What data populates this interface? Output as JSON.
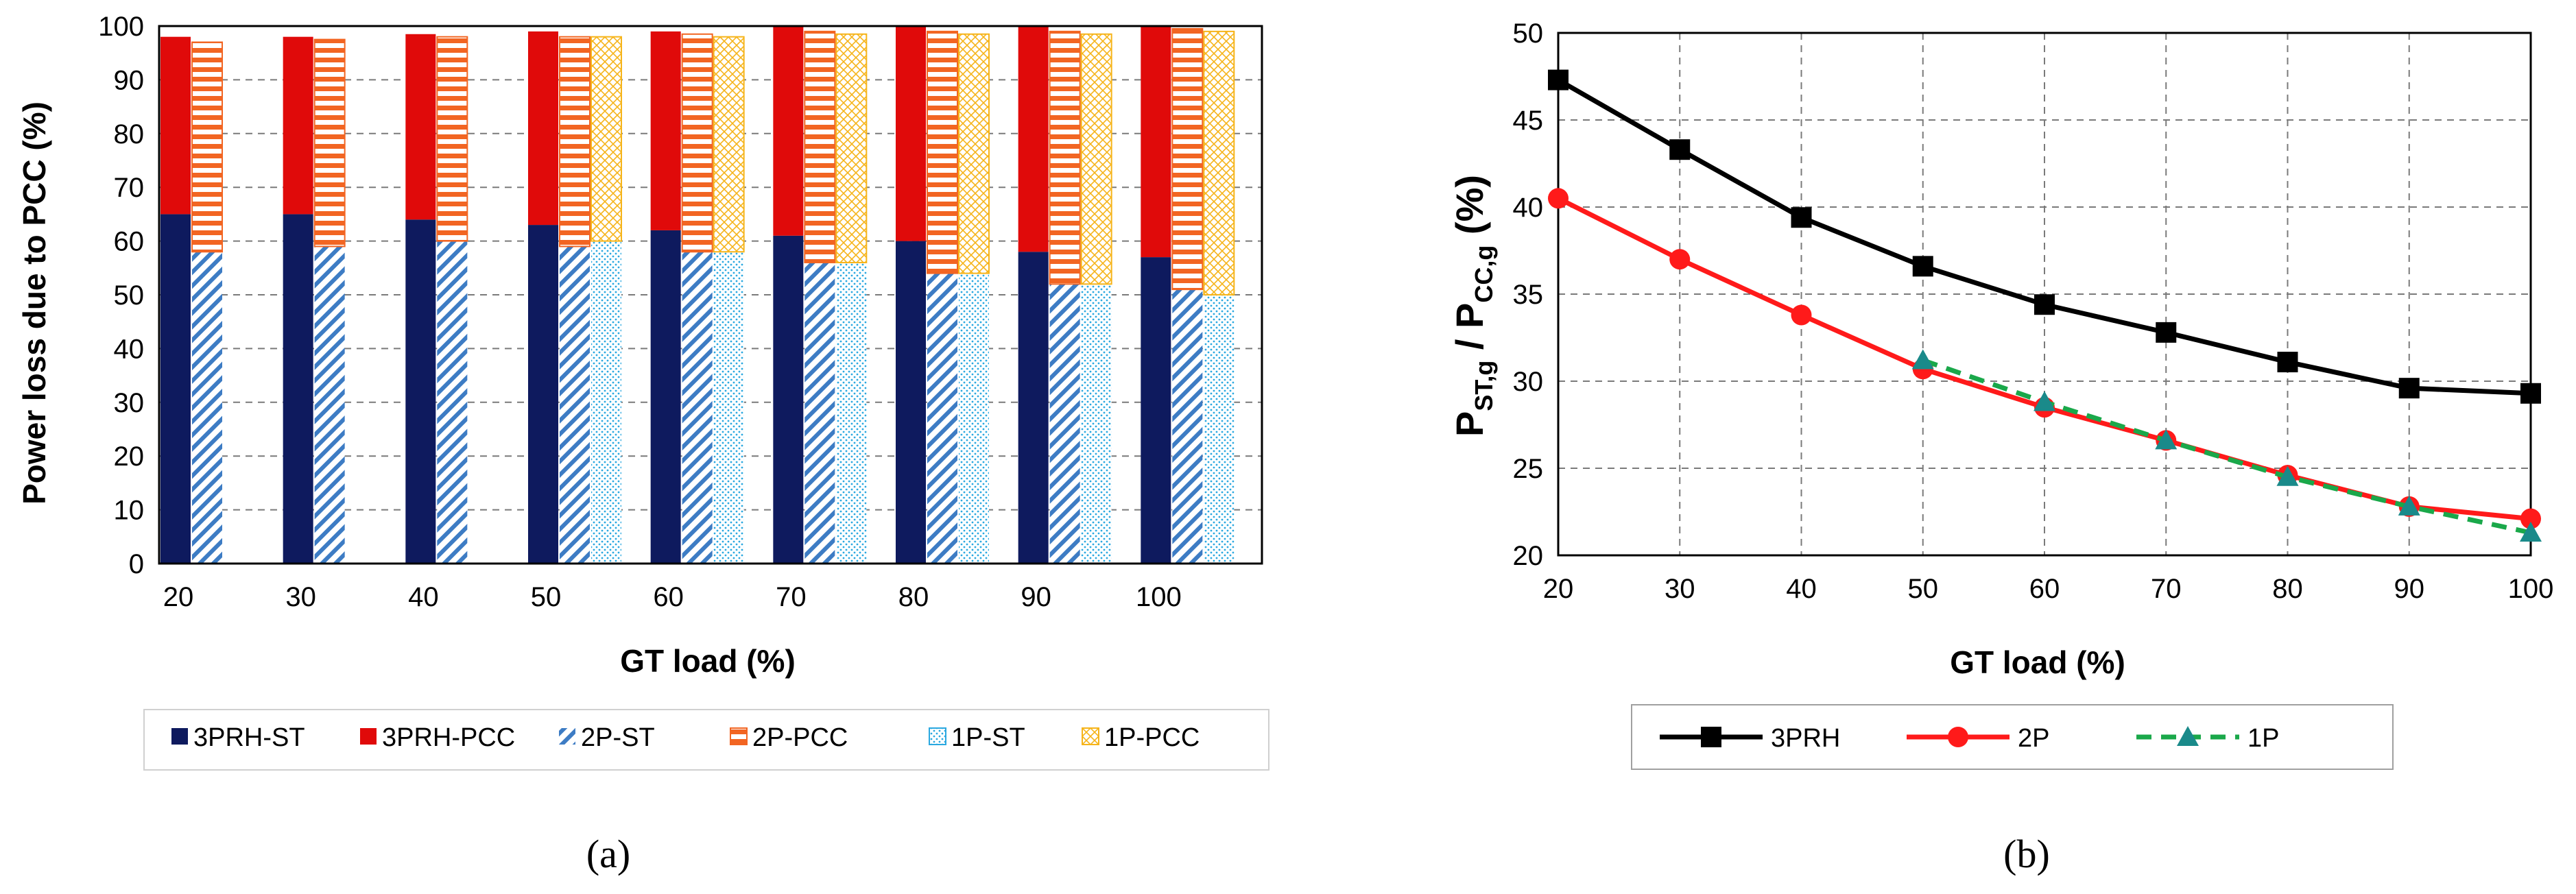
{
  "chart_data": [
    {
      "type": "bar",
      "panel_label": "(a)",
      "xlabel": "GT load (%)",
      "ylabel": "Power loss due to PCC (%)",
      "ylim": [
        0,
        100
      ],
      "ytick_step": 10,
      "yticks": [
        "0",
        "10",
        "20",
        "30",
        "40",
        "50",
        "60",
        "70",
        "80",
        "90",
        "100"
      ],
      "categories": [
        "20",
        "30",
        "40",
        "50",
        "60",
        "70",
        "80",
        "90",
        "100"
      ],
      "grid": true,
      "legend_position": "bottom",
      "stacks": [
        {
          "name": "3PRH",
          "st_values": [
            65,
            65,
            64,
            63,
            62,
            61,
            60,
            58,
            57
          ],
          "totals": [
            98,
            98,
            98.5,
            99,
            99,
            100,
            100,
            100,
            100
          ]
        },
        {
          "name": "2P",
          "st_values": [
            58,
            59,
            60,
            59,
            58,
            56,
            54,
            52,
            51
          ],
          "totals": [
            97,
            97.5,
            98,
            98,
            98.5,
            99,
            99,
            99,
            99.5
          ]
        },
        {
          "name": "1P",
          "st_values": [
            null,
            null,
            null,
            60,
            58,
            56,
            54,
            52,
            50
          ],
          "totals": [
            null,
            null,
            null,
            98,
            98,
            98.5,
            98.5,
            98.5,
            99
          ]
        }
      ],
      "series": [
        {
          "name": "3PRH-ST"
        },
        {
          "name": "3PRH-PCC"
        },
        {
          "name": "2P-ST"
        },
        {
          "name": "2P-PCC"
        },
        {
          "name": "1P-ST"
        },
        {
          "name": "1P-PCC"
        }
      ],
      "colors": {
        "3PRH-ST": "#0e1a5e",
        "3PRH-PCC": "#e00a0a",
        "2P-ST": "#3d7cc4",
        "2P-PCC": "#f26522",
        "1P-ST": "#2aa8e0",
        "1P-PCC": "#f6b41a"
      }
    },
    {
      "type": "line",
      "panel_label": "(b)",
      "xlabel": "GT load (%)",
      "ylabel": "P_ST,g / P_CC,g (%)",
      "ylabel_parts": {
        "p1": "P",
        "sub1": "ST,g",
        "mid": " / P",
        "sub2": "CC,g",
        "tail": " (%)"
      },
      "xlim": [
        20,
        100
      ],
      "ylim": [
        20,
        50
      ],
      "xticks": [
        "20",
        "30",
        "40",
        "50",
        "60",
        "70",
        "80",
        "90",
        "100"
      ],
      "yticks": [
        "20",
        "25",
        "30",
        "35",
        "40",
        "45",
        "50"
      ],
      "grid": true,
      "legend_position": "bottom",
      "x": [
        20,
        30,
        40,
        50,
        60,
        70,
        80,
        90,
        100
      ],
      "series": [
        {
          "name": "3PRH",
          "values": [
            47.3,
            43.3,
            39.4,
            36.6,
            34.4,
            32.8,
            31.1,
            29.6,
            29.3
          ],
          "color": "#000000",
          "marker": "square",
          "dashed": false
        },
        {
          "name": "2P",
          "values": [
            40.5,
            37.0,
            33.8,
            30.7,
            28.5,
            26.6,
            24.6,
            22.8,
            22.1
          ],
          "color": "#ff1a1a",
          "marker": "circle",
          "dashed": false
        },
        {
          "name": "1P",
          "values": [
            null,
            null,
            null,
            31.2,
            28.8,
            26.6,
            24.5,
            22.8,
            21.3
          ],
          "color": "#1aa84a",
          "marker_color": "#1a8a8a",
          "marker": "triangle",
          "dashed": true
        }
      ]
    }
  ]
}
